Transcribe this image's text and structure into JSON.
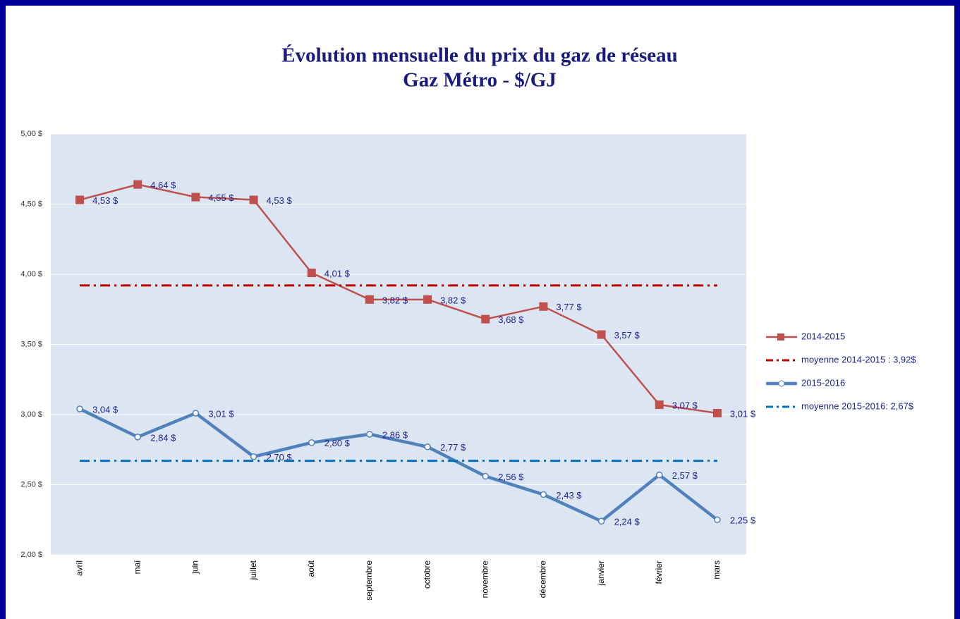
{
  "chart_data": {
    "type": "line",
    "title": "Évolution mensuelle du prix du gaz de réseau",
    "subtitle": "Gaz Métro - $/GJ",
    "categories": [
      "avril",
      "mai",
      "juin",
      "juillet",
      "août",
      "septembre",
      "octobre",
      "novembre",
      "décembre",
      "janvier",
      "février",
      "mars"
    ],
    "series": [
      {
        "name": "2014-2015",
        "color": "#c0504d",
        "marker": "square",
        "values": [
          4.53,
          4.64,
          4.55,
          4.53,
          4.01,
          3.82,
          3.82,
          3.68,
          3.77,
          3.57,
          3.07,
          3.01
        ],
        "value_labels": [
          "4,53 $",
          "4,64 $",
          "4,55 $",
          "4,53 $",
          "4,01 $",
          "3,82 $",
          "3,82 $",
          "3,68 $",
          "3,77 $",
          "3,57 $",
          "3,07 $",
          "3,01 $"
        ]
      },
      {
        "name": "moyenne 2014-2015 : 3,92$",
        "color": "#c00000",
        "dash": "dashdot",
        "values": [
          3.92,
          3.92,
          3.92,
          3.92,
          3.92,
          3.92,
          3.92,
          3.92,
          3.92,
          3.92,
          3.92,
          3.92
        ]
      },
      {
        "name": "2015-2016",
        "color": "#4f81bd",
        "marker": "circle",
        "values": [
          3.04,
          2.84,
          3.01,
          2.7,
          2.8,
          2.86,
          2.77,
          2.56,
          2.43,
          2.24,
          2.57,
          2.25
        ],
        "value_labels": [
          "3,04 $",
          "2,84 $",
          "3,01 $",
          "2,70 $",
          "2,80 $",
          "2,86 $",
          "2,77 $",
          "2,56 $",
          "2,43 $",
          "2,24 $",
          "2,57 $",
          "2,25 $"
        ]
      },
      {
        "name": "moyenne 2015-2016: 2,67$",
        "color": "#0070c0",
        "dash": "dashdot",
        "values": [
          2.67,
          2.67,
          2.67,
          2.67,
          2.67,
          2.67,
          2.67,
          2.67,
          2.67,
          2.67,
          2.67,
          2.67
        ]
      }
    ],
    "ylim": [
      2,
      5
    ],
    "yticks": [
      {
        "value": 2,
        "label": "2,00 $"
      },
      {
        "value": 2.5,
        "label": "2,50 $"
      },
      {
        "value": 3,
        "label": "3,00 $"
      },
      {
        "value": 3.5,
        "label": "3,50 $"
      },
      {
        "value": 4,
        "label": "4,00 $"
      },
      {
        "value": 4.5,
        "label": "4,50 $"
      },
      {
        "value": 5,
        "label": "5,00 $"
      }
    ],
    "grid": true,
    "legend": "right"
  }
}
